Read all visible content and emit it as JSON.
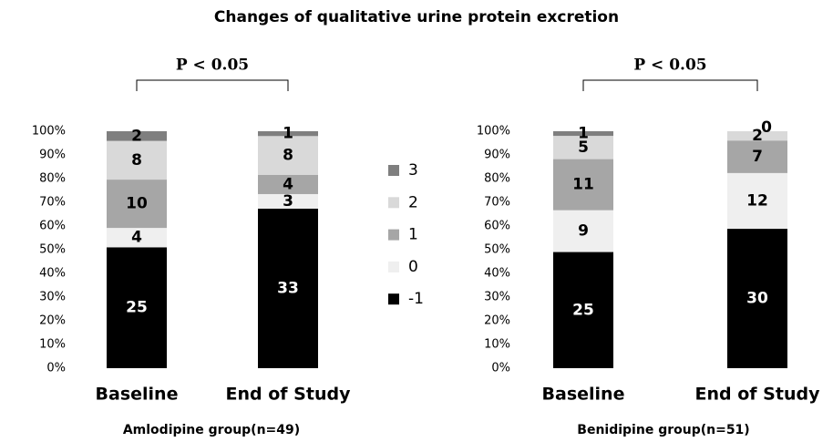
{
  "title": "Changes of qualitative urine protein excretion",
  "chart_data": [
    {
      "type": "bar",
      "stacking": "percent",
      "xlabel": "Amlodipine group(n=49)",
      "annotation": "P < 0.05",
      "categories": [
        "Baseline",
        "End of Study"
      ],
      "ylim": [
        0,
        100
      ],
      "yticks": [
        {
          "value": 0,
          "label": "0%"
        },
        {
          "value": 10,
          "label": "10%"
        },
        {
          "value": 20,
          "label": "20%"
        },
        {
          "value": 30,
          "label": "30%"
        },
        {
          "value": 40,
          "label": "40%"
        },
        {
          "value": 50,
          "label": "50%"
        },
        {
          "value": 60,
          "label": "60%"
        },
        {
          "value": 70,
          "label": "70%"
        },
        {
          "value": 80,
          "label": "80%"
        },
        {
          "value": 90,
          "label": "90%"
        },
        {
          "value": 100,
          "label": "100%"
        }
      ],
      "series": [
        {
          "name": "-1",
          "color": "#000000",
          "values": [
            25,
            33
          ]
        },
        {
          "name": "0",
          "color": "#efefef",
          "values": [
            4,
            3
          ]
        },
        {
          "name": "1",
          "color": "#a6a6a6",
          "values": [
            10,
            4
          ]
        },
        {
          "name": "2",
          "color": "#d9d9d9",
          "values": [
            8,
            8
          ]
        },
        {
          "name": "3",
          "color": "#7f7f7f",
          "values": [
            2,
            1
          ]
        }
      ]
    },
    {
      "type": "bar",
      "stacking": "percent",
      "xlabel": "Benidipine group(n=51)",
      "annotation": "P < 0.05",
      "categories": [
        "Baseline",
        "End of Study"
      ],
      "ylim": [
        0,
        100
      ],
      "yticks": [
        {
          "value": 0,
          "label": "0%"
        },
        {
          "value": 10,
          "label": "10%"
        },
        {
          "value": 20,
          "label": "20%"
        },
        {
          "value": 30,
          "label": "30%"
        },
        {
          "value": 40,
          "label": "40%"
        },
        {
          "value": 50,
          "label": "50%"
        },
        {
          "value": 60,
          "label": "60%"
        },
        {
          "value": 70,
          "label": "70%"
        },
        {
          "value": 80,
          "label": "80%"
        },
        {
          "value": 90,
          "label": "90%"
        },
        {
          "value": 100,
          "label": "100%"
        }
      ],
      "series": [
        {
          "color": "#000000",
          "values": [
            25,
            30
          ]
        },
        {
          "color": "#efefef",
          "values": [
            9,
            12
          ]
        },
        {
          "color": "#a6a6a6",
          "values": [
            11,
            7
          ]
        },
        {
          "color": "#d9d9d9",
          "values": [
            5,
            2
          ]
        },
        {
          "color": "#7f7f7f",
          "values": [
            1,
            0
          ]
        }
      ]
    }
  ]
}
